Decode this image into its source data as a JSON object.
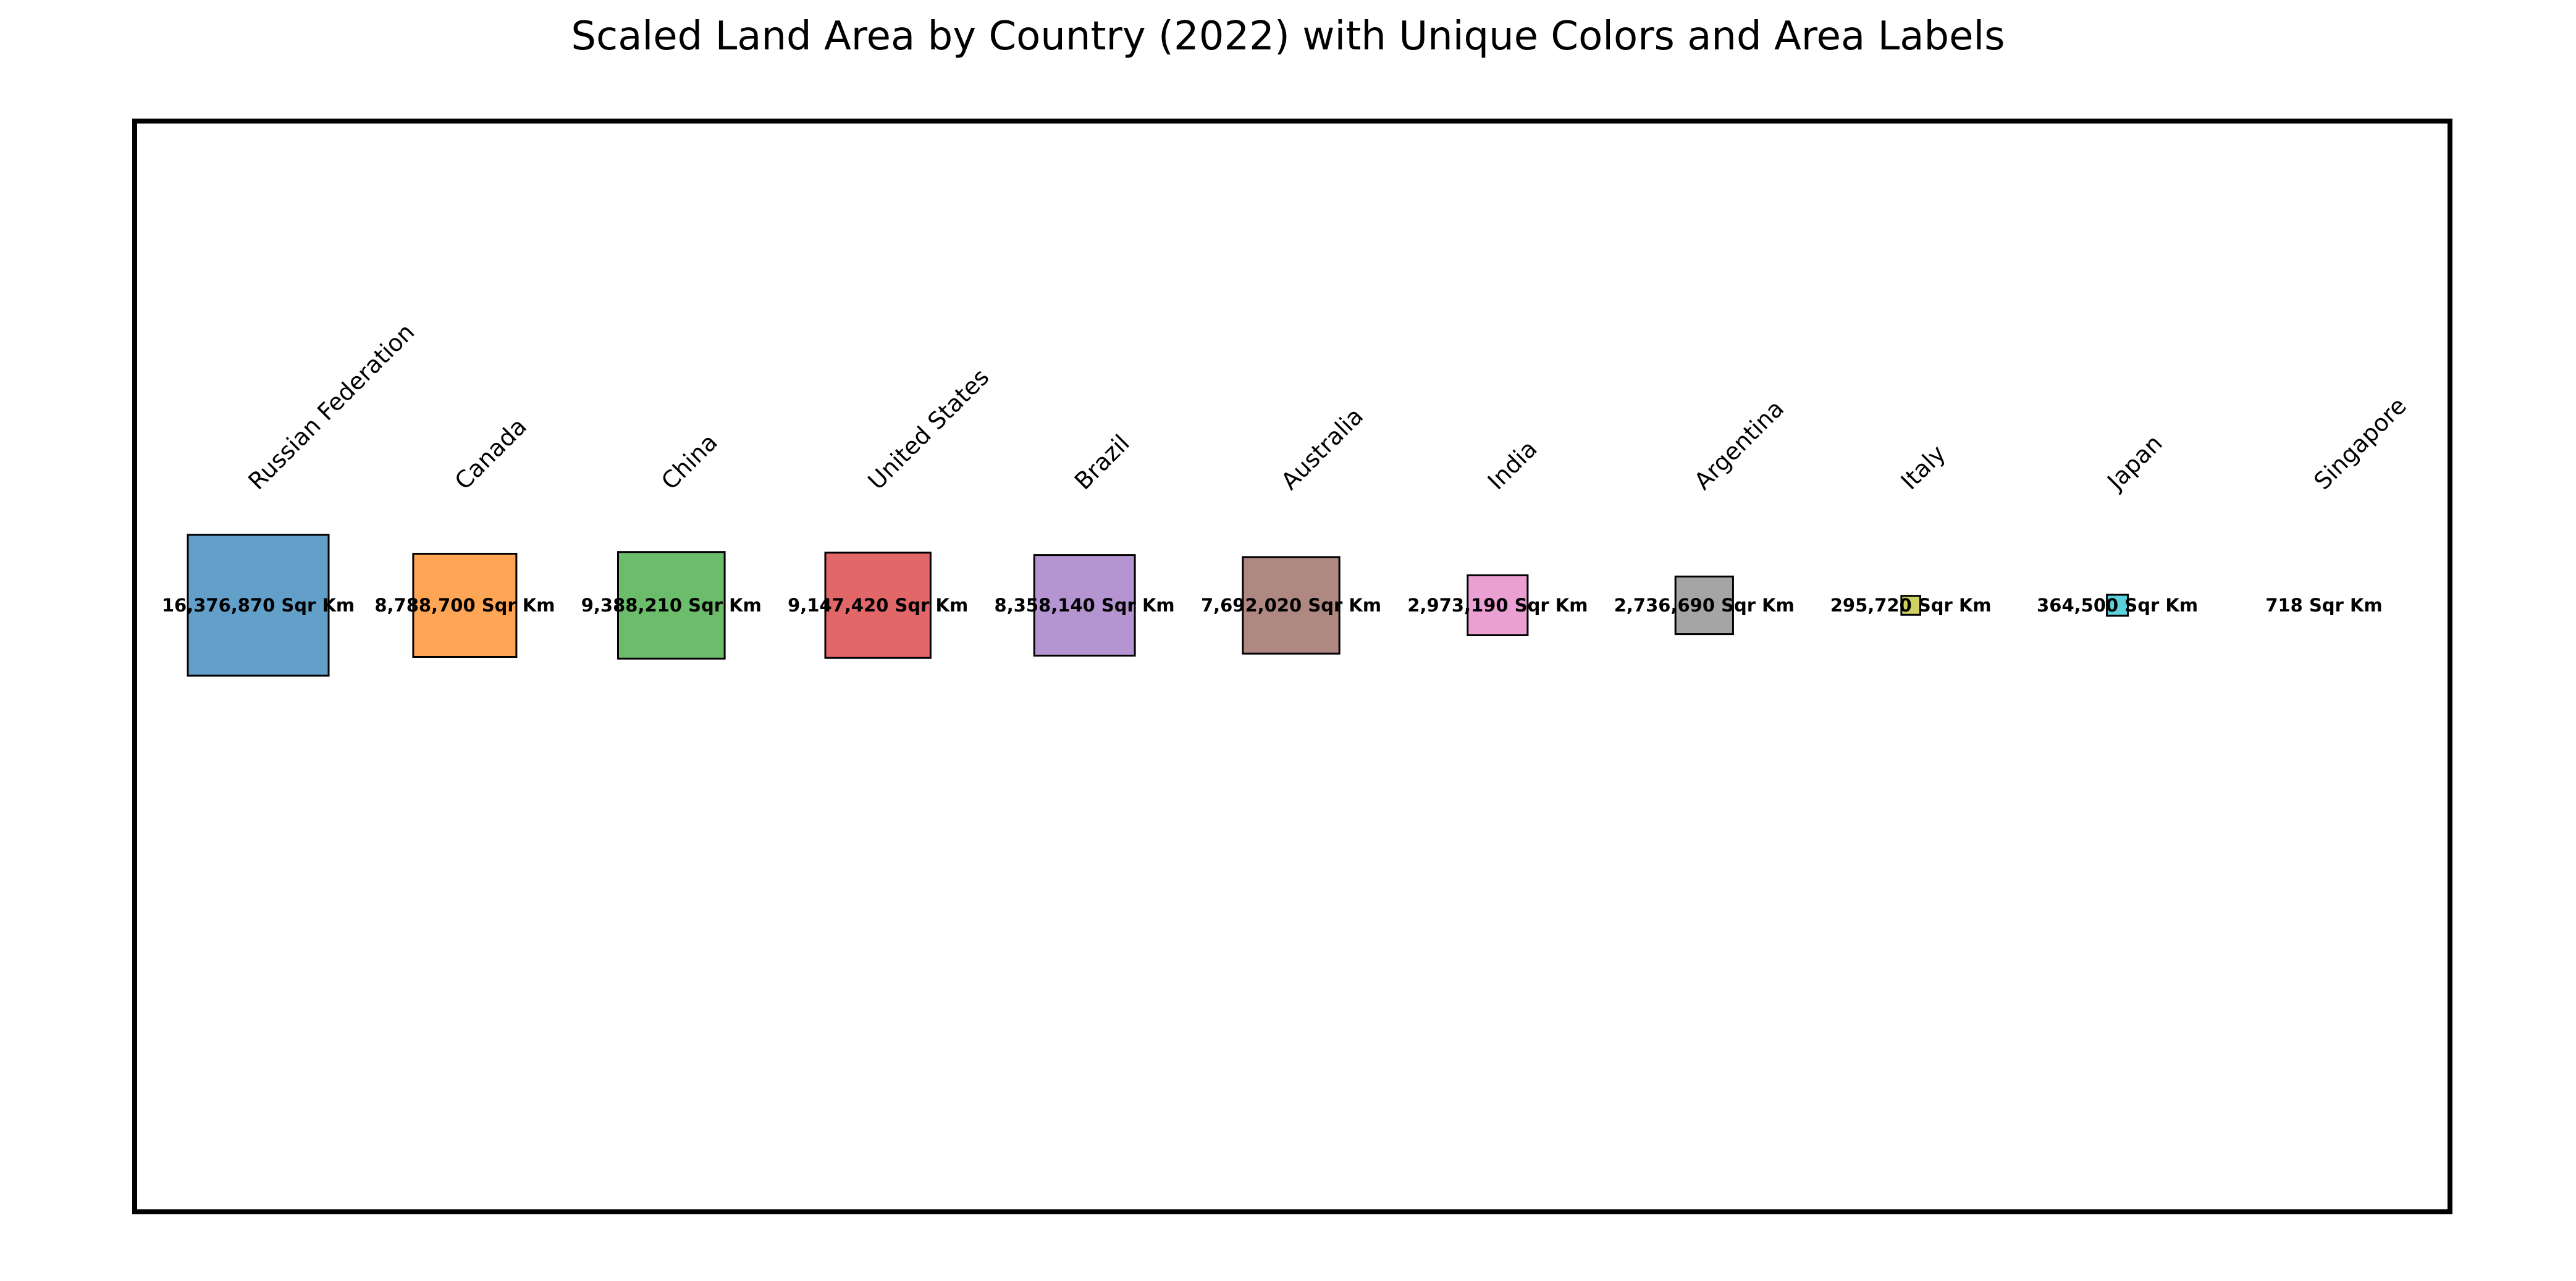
{
  "chart_data": {
    "type": "scaled-square",
    "title": "Scaled Land Area by Country (2022) with Unique Colors and Area Labels",
    "xlabel": "",
    "ylabel": "",
    "grid": false,
    "axes_visible": false,
    "value_unit": "Sqr Km",
    "countries": [
      {
        "name": "Russian Federation",
        "value": 16376870,
        "label": "16,376,870 Sqr Km",
        "color": "#1f77b4"
      },
      {
        "name": "Canada",
        "value": 8788700,
        "label": "8,788,700 Sqr Km",
        "color": "#ff7f0e"
      },
      {
        "name": "China",
        "value": 9388210,
        "label": "9,388,210 Sqr Km",
        "color": "#2ca02c"
      },
      {
        "name": "United States",
        "value": 9147420,
        "label": "9,147,420 Sqr Km",
        "color": "#d62728"
      },
      {
        "name": "Brazil",
        "value": 8358140,
        "label": "8,358,140 Sqr Km",
        "color": "#9467bd"
      },
      {
        "name": "Australia",
        "value": 7692020,
        "label": "7,692,020 Sqr Km",
        "color": "#8c564b"
      },
      {
        "name": "India",
        "value": 2973190,
        "label": "2,973,190 Sqr Km",
        "color": "#e377c2"
      },
      {
        "name": "Argentina",
        "value": 2736690,
        "label": "2,736,690 Sqr Km",
        "color": "#7f7f7f"
      },
      {
        "name": "Italy",
        "value": 295720,
        "label": "295,720 Sqr Km",
        "color": "#bcbd22"
      },
      {
        "name": "Japan",
        "value": 364500,
        "label": "364,500 Sqr Km",
        "color": "#17becf"
      },
      {
        "name": "Singapore",
        "value": 718,
        "label": "718 Sqr Km",
        "color": "#1f77b4"
      }
    ]
  }
}
